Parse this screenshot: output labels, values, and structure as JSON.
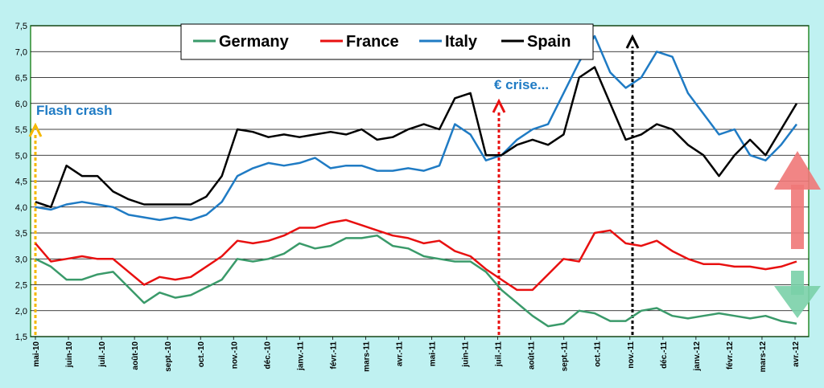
{
  "chart_data": {
    "type": "line",
    "title": "",
    "xlabel": "",
    "ylabel": "",
    "ylim": [
      1.5,
      7.5
    ],
    "yticks": [
      "1,5",
      "2,0",
      "2,5",
      "3,0",
      "3,5",
      "4,0",
      "4,5",
      "5,0",
      "5,5",
      "6,0",
      "6,5",
      "7,0",
      "7,5"
    ],
    "ytick_values": [
      1.5,
      2.0,
      2.5,
      3.0,
      3.5,
      4.0,
      4.5,
      5.0,
      5.5,
      6.0,
      6.5,
      7.0,
      7.5
    ],
    "grid": true,
    "legend_position": "top-center",
    "x_labels": [
      "mai-10",
      "juin-10",
      "juil.-10",
      "août-10",
      "sept.-10",
      "oct.-10",
      "nov.-10",
      "déc.-10",
      "janv.-11",
      "févr.-11",
      "mars-11",
      "avr.-11",
      "mai-11",
      "juin-11",
      "juil.-11",
      "août-11",
      "sept.-11",
      "oct.-11",
      "nov.-11",
      "déc.-11",
      "janv.-12",
      "févr.-12",
      "mars-12",
      "avr.-12"
    ],
    "series": [
      {
        "name": "Germany",
        "color": "#3a9a6a",
        "values": [
          3.0,
          2.85,
          2.6,
          2.6,
          2.7,
          2.75,
          2.45,
          2.15,
          2.35,
          2.25,
          2.3,
          2.45,
          2.6,
          3.0,
          2.95,
          3.0,
          3.1,
          3.3,
          3.2,
          3.25,
          3.4,
          3.4,
          3.45,
          3.25,
          3.2,
          3.05,
          3.0,
          2.95,
          2.95,
          2.75,
          2.4,
          2.15,
          1.9,
          1.7,
          1.75,
          2.0,
          1.95,
          1.8,
          1.8,
          2.0,
          2.05,
          1.9,
          1.85,
          1.9,
          1.95,
          1.9,
          1.85,
          1.9,
          1.8,
          1.75
        ]
      },
      {
        "name": "France",
        "color": "#e81010",
        "values": [
          3.3,
          2.95,
          3.0,
          3.05,
          3.0,
          3.0,
          2.75,
          2.5,
          2.65,
          2.6,
          2.65,
          2.85,
          3.05,
          3.35,
          3.3,
          3.35,
          3.45,
          3.6,
          3.6,
          3.7,
          3.75,
          3.65,
          3.55,
          3.45,
          3.4,
          3.3,
          3.35,
          3.15,
          3.05,
          2.8,
          2.6,
          2.4,
          2.4,
          2.7,
          3.0,
          2.95,
          3.5,
          3.55,
          3.3,
          3.25,
          3.35,
          3.15,
          3.0,
          2.9,
          2.9,
          2.85,
          2.85,
          2.8,
          2.85,
          2.95
        ]
      },
      {
        "name": "Italy",
        "color": "#1f7bc4",
        "values": [
          4.0,
          3.95,
          4.05,
          4.1,
          4.05,
          4.0,
          3.85,
          3.8,
          3.75,
          3.8,
          3.75,
          3.85,
          4.1,
          4.6,
          4.75,
          4.85,
          4.8,
          4.85,
          4.95,
          4.75,
          4.8,
          4.8,
          4.7,
          4.7,
          4.75,
          4.7,
          4.8,
          5.6,
          5.4,
          4.9,
          5.0,
          5.3,
          5.5,
          5.6,
          6.2,
          6.8,
          7.3,
          6.6,
          6.3,
          6.5,
          7.0,
          6.9,
          6.2,
          5.8,
          5.4,
          5.5,
          5.0,
          4.9,
          5.2,
          5.6
        ]
      },
      {
        "name": "Spain",
        "color": "#000000",
        "values": [
          4.1,
          4.0,
          4.8,
          4.6,
          4.6,
          4.3,
          4.15,
          4.05,
          4.05,
          4.05,
          4.05,
          4.2,
          4.6,
          5.5,
          5.45,
          5.35,
          5.4,
          5.35,
          5.4,
          5.45,
          5.4,
          5.5,
          5.3,
          5.35,
          5.5,
          5.6,
          5.5,
          6.1,
          6.2,
          5.0,
          5.0,
          5.2,
          5.3,
          5.2,
          5.4,
          6.5,
          6.7,
          6.0,
          5.3,
          5.4,
          5.6,
          5.5,
          5.2,
          5.0,
          4.6,
          5.0,
          5.3,
          5.0,
          5.5,
          6.0
        ]
      }
    ],
    "annotations": [
      {
        "text": "Flash crash",
        "color": "#1f7bc4"
      },
      {
        "text": "€ crise...",
        "color": "#1f7bc4"
      }
    ]
  }
}
